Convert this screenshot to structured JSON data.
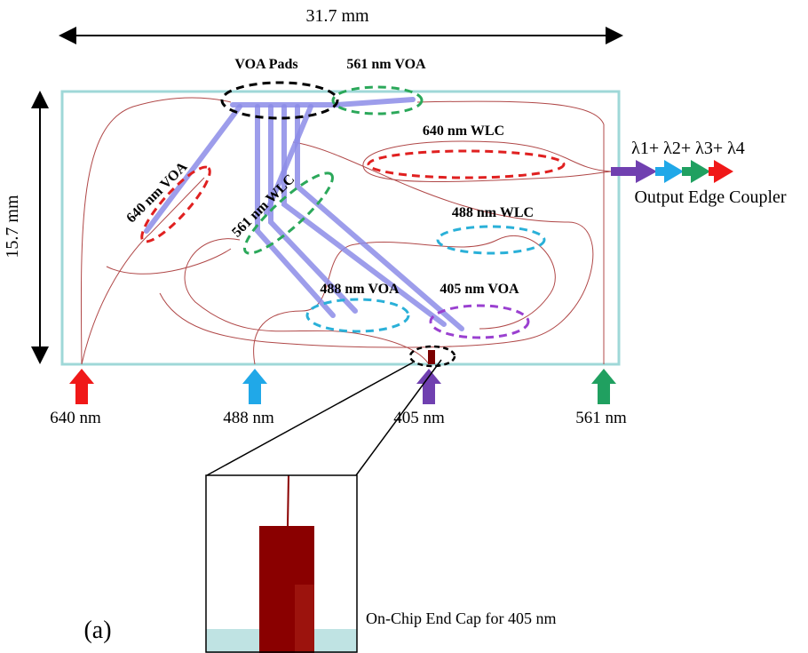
{
  "dimensions": {
    "width": "31.7 mm",
    "height": "15.7 mm"
  },
  "labels": [
    "VOA Pads",
    "561 nm VOA",
    "640 nm WLC",
    "640 nm VOA",
    "561 nm WLC",
    "488 nm WLC",
    "488 nm VOA",
    "405 nm VOA"
  ],
  "output": {
    "wavelengths": "λ1+ λ2+ λ3+ λ4",
    "label": "Output Edge Coupler"
  },
  "inputs": [
    "640 nm",
    "488 nm",
    "405 nm",
    "561 nm"
  ],
  "inset": {
    "label": "On-Chip End Cap for 405 nm"
  },
  "panel_label": "(a)"
}
